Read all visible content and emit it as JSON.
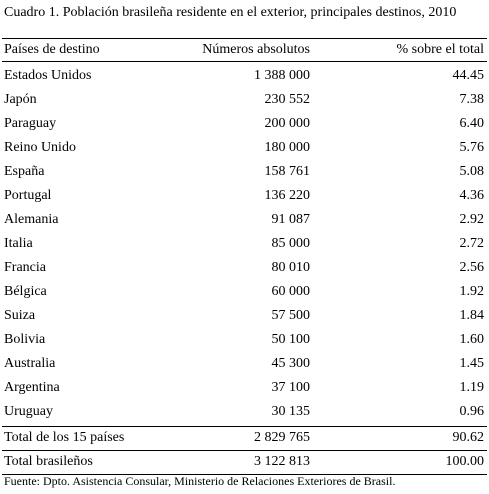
{
  "title": "Cuadro 1. Población brasileña residente en el exterior, principales destinos, 2010",
  "table": {
    "header": [
      "Países de destino",
      "Números absolutos",
      "% sobre el total"
    ],
    "rows": [
      [
        "Estados Unidos",
        "1 388 000",
        "44.45"
      ],
      [
        "Japón",
        "230 552",
        "7.38"
      ],
      [
        "Paraguay",
        "200 000",
        "6.40"
      ],
      [
        "Reino Unido",
        "180 000",
        "5.76"
      ],
      [
        "España",
        "158 761",
        "5.08"
      ],
      [
        "Portugal",
        "136 220",
        "4.36"
      ],
      [
        "Alemania",
        "91 087",
        "2.92"
      ],
      [
        "Italia",
        "85 000",
        "2.72"
      ],
      [
        "Francia",
        "80 010",
        "2.56"
      ],
      [
        "Bélgica",
        "60 000",
        "1.92"
      ],
      [
        "Suiza",
        "57 500",
        "1.84"
      ],
      [
        "Bolivia",
        "50 100",
        "1.60"
      ],
      [
        "Australia",
        "45 300",
        "1.45"
      ],
      [
        "Argentina",
        "37 100",
        "1.19"
      ],
      [
        "Uruguay",
        "30 135",
        "0.96"
      ]
    ],
    "totals": [
      [
        "Total de los 15 países",
        "2 829 765",
        "90.62"
      ],
      [
        "Total brasileños",
        "3 122 813",
        "100.00"
      ]
    ]
  },
  "source": "Fuente: Dpto. Asistencia Consular, Ministerio de Relaciones Exteriores de Brasil."
}
